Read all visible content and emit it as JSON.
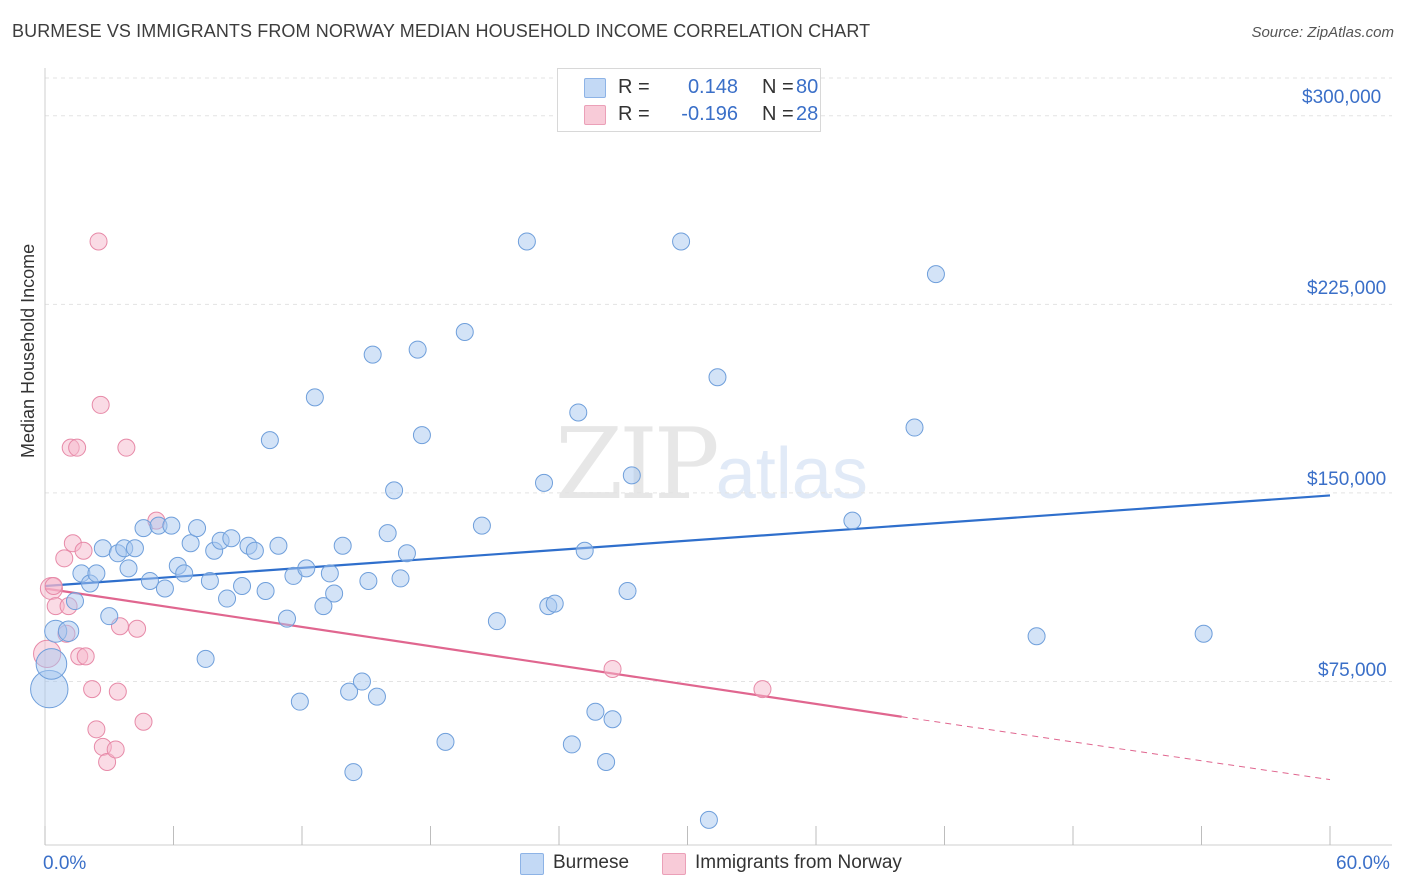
{
  "header": {
    "title": "BURMESE VS IMMIGRANTS FROM NORWAY MEDIAN HOUSEHOLD INCOME CORRELATION CHART",
    "source": "Source: ZipAtlas.com"
  },
  "watermark": {
    "zip": "ZIP",
    "atlas": "atlas"
  },
  "legend": {
    "rows": [
      {
        "r_label": "R =",
        "r_value": "0.148",
        "n_label": "N =",
        "n_value": "80",
        "color": "#a8c8f0"
      },
      {
        "r_label": "R =",
        "r_value": "-0.196",
        "n_label": "N =",
        "n_value": "28",
        "color": "#f5b8cb"
      }
    ]
  },
  "bottom_legend": {
    "series1": "Burmese",
    "series2": "Immigrants from Norway"
  },
  "axes": {
    "x_min_label": "0.0%",
    "x_max_label": "60.0%",
    "y_label": "Median Household Income",
    "y_ticks": [
      "$75,000",
      "$150,000",
      "$225,000",
      "$300,000"
    ]
  },
  "colors": {
    "blue_fill": "#a8c8f0",
    "blue_stroke": "#6f9fdb",
    "blue_line": "#2f6fcc",
    "pink_fill": "#f5b8cb",
    "pink_stroke": "#e78aa8",
    "pink_line": "#e0668f"
  },
  "chart_data": {
    "type": "scatter",
    "title": "BURMESE VS IMMIGRANTS FROM NORWAY MEDIAN HOUSEHOLD INCOME CORRELATION CHART",
    "xlabel": "",
    "ylabel": "Median Household Income",
    "xlim": [
      0,
      60
    ],
    "ylim": [
      10000,
      315000
    ],
    "y_tick_values": [
      75000,
      150000,
      225000,
      300000
    ],
    "series": [
      {
        "name": "Burmese",
        "r": 0.148,
        "n": 80,
        "trend": {
          "x0": 0,
          "y0": 113000,
          "x1": 60,
          "y1": 149000
        },
        "points": [
          [
            0.2,
            72000,
            2.2
          ],
          [
            0.3,
            82000,
            1.8
          ],
          [
            0.5,
            95000,
            1.3
          ],
          [
            1.1,
            95000,
            1.2
          ],
          [
            1.4,
            107000,
            1
          ],
          [
            1.7,
            118000,
            1
          ],
          [
            2.1,
            114000,
            1
          ],
          [
            2.4,
            118000,
            1
          ],
          [
            2.7,
            128000,
            1
          ],
          [
            3.0,
            101000,
            1
          ],
          [
            3.4,
            126000,
            1
          ],
          [
            3.7,
            128000,
            1
          ],
          [
            3.9,
            120000,
            1
          ],
          [
            4.2,
            128000,
            1
          ],
          [
            4.6,
            136000,
            1
          ],
          [
            4.9,
            115000,
            1
          ],
          [
            5.3,
            137000,
            1
          ],
          [
            5.6,
            112000,
            1
          ],
          [
            5.9,
            137000,
            1
          ],
          [
            6.2,
            121000,
            1
          ],
          [
            6.5,
            118000,
            1
          ],
          [
            6.8,
            130000,
            1
          ],
          [
            7.1,
            136000,
            1
          ],
          [
            7.5,
            84000,
            1
          ],
          [
            7.7,
            115000,
            1
          ],
          [
            7.9,
            127000,
            1
          ],
          [
            8.2,
            131000,
            1
          ],
          [
            8.5,
            108000,
            1
          ],
          [
            8.7,
            132000,
            1
          ],
          [
            9.2,
            113000,
            1
          ],
          [
            9.5,
            129000,
            1
          ],
          [
            9.8,
            127000,
            1
          ],
          [
            10.3,
            111000,
            1
          ],
          [
            10.5,
            171000,
            1
          ],
          [
            10.9,
            129000,
            1
          ],
          [
            11.3,
            100000,
            1
          ],
          [
            11.6,
            117000,
            1
          ],
          [
            11.9,
            67000,
            1
          ],
          [
            12.2,
            120000,
            1
          ],
          [
            12.6,
            188000,
            1
          ],
          [
            13.0,
            105000,
            1
          ],
          [
            13.3,
            118000,
            1
          ],
          [
            13.5,
            110000,
            1
          ],
          [
            13.9,
            129000,
            1
          ],
          [
            14.2,
            71000,
            1
          ],
          [
            14.4,
            39000,
            1
          ],
          [
            14.8,
            75000,
            1
          ],
          [
            15.1,
            115000,
            1
          ],
          [
            15.3,
            205000,
            1
          ],
          [
            15.5,
            69000,
            1
          ],
          [
            16.0,
            134000,
            1
          ],
          [
            16.3,
            151000,
            1
          ],
          [
            16.6,
            116000,
            1
          ],
          [
            16.9,
            126000,
            1
          ],
          [
            17.4,
            207000,
            1
          ],
          [
            17.6,
            173000,
            1
          ],
          [
            18.7,
            51000,
            1
          ],
          [
            19.6,
            214000,
            1
          ],
          [
            20.4,
            137000,
            1
          ],
          [
            21.1,
            99000,
            1
          ],
          [
            22.5,
            250000,
            1
          ],
          [
            23.3,
            154000,
            1
          ],
          [
            23.5,
            105000,
            1
          ],
          [
            23.8,
            106000,
            1
          ],
          [
            24.6,
            50000,
            1
          ],
          [
            24.9,
            182000,
            1
          ],
          [
            25.2,
            127000,
            1
          ],
          [
            25.7,
            63000,
            1
          ],
          [
            26.2,
            43000,
            1
          ],
          [
            26.5,
            60000,
            1
          ],
          [
            27.2,
            111000,
            1
          ],
          [
            27.4,
            157000,
            1
          ],
          [
            29.7,
            250000,
            1
          ],
          [
            31.0,
            20000,
            1
          ],
          [
            31.4,
            196000,
            1
          ],
          [
            37.7,
            139000,
            1
          ],
          [
            40.6,
            176000,
            1
          ],
          [
            41.6,
            237000,
            1
          ],
          [
            46.3,
            93000,
            1
          ],
          [
            54.1,
            94000,
            1
          ]
        ]
      },
      {
        "name": "Immigrants from Norway",
        "r": -0.196,
        "n": 28,
        "trend": {
          "x0": 0,
          "y0": 112000,
          "x1": 40,
          "y1": 61000,
          "dash_x1": 60,
          "dash_y1": 36000
        },
        "points": [
          [
            0.1,
            86000,
            1.6
          ],
          [
            0.3,
            112000,
            1.3
          ],
          [
            0.5,
            105000,
            1
          ],
          [
            0.9,
            124000,
            1
          ],
          [
            1.0,
            94000,
            1
          ],
          [
            1.1,
            105000,
            1
          ],
          [
            1.2,
            168000,
            1
          ],
          [
            1.3,
            130000,
            1
          ],
          [
            1.5,
            168000,
            1
          ],
          [
            1.6,
            85000,
            1
          ],
          [
            1.8,
            127000,
            1
          ],
          [
            1.9,
            85000,
            1
          ],
          [
            2.2,
            72000,
            1
          ],
          [
            2.4,
            56000,
            1
          ],
          [
            2.5,
            250000,
            1
          ],
          [
            2.6,
            185000,
            1
          ],
          [
            2.7,
            49000,
            1
          ],
          [
            2.9,
            43000,
            1
          ],
          [
            3.3,
            48000,
            1
          ],
          [
            3.4,
            71000,
            1
          ],
          [
            3.5,
            97000,
            1
          ],
          [
            3.8,
            168000,
            1
          ],
          [
            4.3,
            96000,
            1
          ],
          [
            4.6,
            59000,
            1
          ],
          [
            5.2,
            139000,
            1
          ],
          [
            26.5,
            80000,
            1
          ],
          [
            33.5,
            72000,
            1
          ],
          [
            0.4,
            113000,
            1
          ]
        ]
      }
    ]
  }
}
